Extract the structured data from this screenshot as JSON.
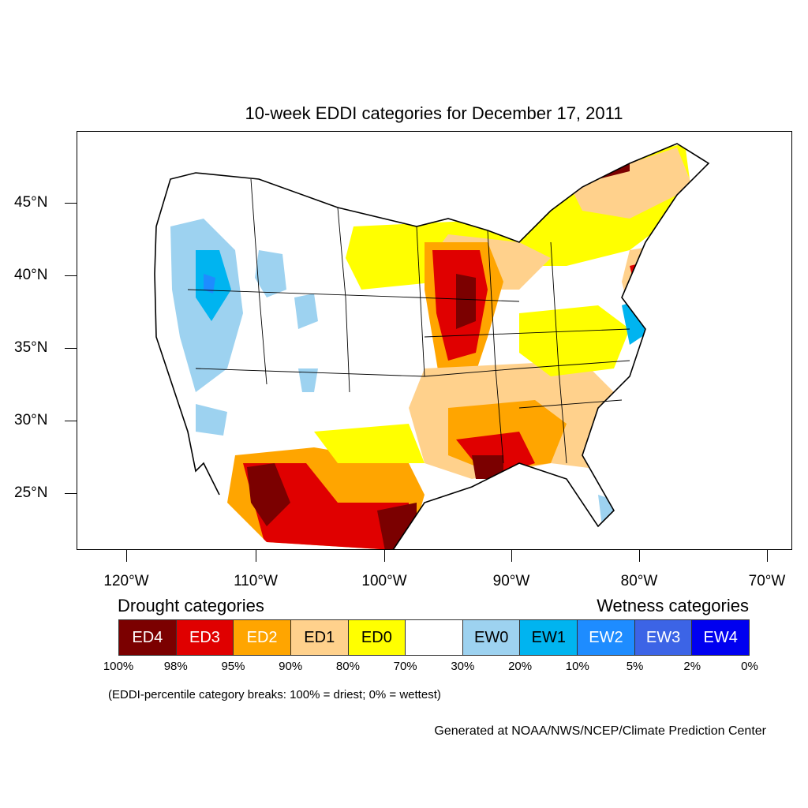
{
  "title": "10-week EDDI categories for December 17, 2011",
  "lat_labels": [
    "45°N",
    "40°N",
    "35°N",
    "30°N",
    "25°N"
  ],
  "lon_labels": [
    "120°W",
    "110°W",
    "100°W",
    "90°W",
    "80°W",
    "70°W"
  ],
  "legend": {
    "drought_heading": "Drought categories",
    "wetness_heading": "Wetness categories",
    "categories": [
      {
        "label": "ED4",
        "color": "#7b0000",
        "text_color": "#ffffff"
      },
      {
        "label": "ED3",
        "color": "#e00000",
        "text_color": "#ffffff"
      },
      {
        "label": "ED2",
        "color": "#ffa500",
        "text_color": "#ffffff"
      },
      {
        "label": "ED1",
        "color": "#ffd18c",
        "text_color": "#000000"
      },
      {
        "label": "ED0",
        "color": "#ffff00",
        "text_color": "#000000"
      },
      {
        "label": "",
        "color": "#ffffff",
        "text_color": "#000000"
      },
      {
        "label": "EW0",
        "color": "#9dd2f0",
        "text_color": "#000000"
      },
      {
        "label": "EW1",
        "color": "#00b4f0",
        "text_color": "#000000"
      },
      {
        "label": "EW2",
        "color": "#1e8cff",
        "text_color": "#ffffff"
      },
      {
        "label": "EW3",
        "color": "#3c64e6",
        "text_color": "#ffffff"
      },
      {
        "label": "EW4",
        "color": "#0000f0",
        "text_color": "#ffffff"
      }
    ],
    "percentiles": [
      "100%",
      "98%",
      "95%",
      "90%",
      "80%",
      "70%",
      "30%",
      "20%",
      "10%",
      "5%",
      "2%",
      "0%"
    ]
  },
  "note": "(EDDI-percentile category breaks: 100% = driest; 0% = wettest)",
  "credit": "Generated at NOAA/NWS/NCEP/Climate Prediction Center"
}
